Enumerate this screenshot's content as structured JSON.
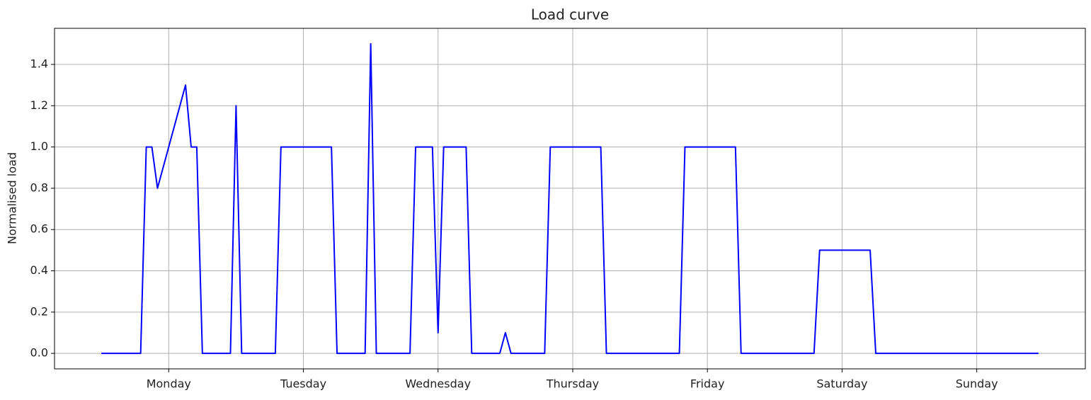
{
  "chart_data": {
    "type": "line",
    "title": "Load curve",
    "ylabel": "Normalised load",
    "x": [
      0,
      1,
      2,
      3,
      4,
      5,
      6,
      7,
      8,
      9,
      10,
      11,
      12,
      13,
      14,
      15,
      16,
      17,
      18,
      19,
      20,
      21,
      22,
      23,
      24,
      25,
      26,
      27,
      28,
      29,
      30,
      31,
      32,
      33,
      34,
      35,
      36,
      37,
      38,
      39,
      40,
      41,
      42,
      43,
      44,
      45,
      46,
      47,
      48,
      49,
      50,
      51,
      52,
      53,
      54,
      55,
      56,
      57,
      58,
      59,
      60,
      61,
      62,
      63,
      64,
      65,
      66,
      67,
      68,
      69,
      70,
      71,
      72,
      73,
      74,
      75,
      76,
      77,
      78,
      79,
      80,
      81,
      82,
      83,
      84,
      85,
      86,
      87,
      88,
      89,
      90,
      91,
      92,
      93,
      94,
      95,
      96,
      97,
      98,
      99,
      100,
      101,
      102,
      103,
      104,
      105,
      106,
      107,
      108,
      109,
      110,
      111,
      112,
      113,
      114,
      115,
      116,
      117,
      118,
      119,
      120,
      121,
      122,
      123,
      124,
      125,
      126,
      127,
      128,
      129,
      130,
      131,
      132,
      133,
      134,
      135,
      136,
      137,
      138,
      139,
      140,
      141,
      142,
      143,
      144,
      145,
      146,
      147,
      148,
      149,
      150,
      151,
      152,
      153,
      154,
      155,
      156,
      157,
      158,
      159,
      160,
      161,
      162,
      163,
      164,
      165,
      166,
      167
    ],
    "values": [
      0,
      0,
      0,
      0,
      0,
      0,
      0,
      0,
      1,
      1,
      0.8,
      0.9,
      1,
      1.1,
      1.2,
      1.3,
      1,
      1,
      0,
      0,
      0,
      0,
      0,
      0,
      1.2,
      0,
      0,
      0,
      0,
      0,
      0,
      0,
      1,
      1,
      1,
      1,
      1,
      1,
      1,
      1,
      1,
      1,
      0,
      0,
      0,
      0,
      0,
      0,
      1.5,
      0,
      0,
      0,
      0,
      0,
      0,
      0,
      1,
      1,
      1,
      1,
      0.1,
      1,
      1,
      1,
      1,
      1,
      0,
      0,
      0,
      0,
      0,
      0,
      0.1,
      0,
      0,
      0,
      0,
      0,
      0,
      0,
      1,
      1,
      1,
      1,
      1,
      1,
      1,
      1,
      1,
      1,
      0,
      0,
      0,
      0,
      0,
      0,
      0,
      0,
      0,
      0,
      0,
      0,
      0,
      0,
      1,
      1,
      1,
      1,
      1,
      1,
      1,
      1,
      1,
      1,
      0,
      0,
      0,
      0,
      0,
      0,
      0,
      0,
      0,
      0,
      0,
      0,
      0,
      0,
      0.5,
      0.5,
      0.5,
      0.5,
      0.5,
      0.5,
      0.5,
      0.5,
      0.5,
      0.5,
      0,
      0,
      0,
      0,
      0,
      0,
      0,
      0,
      0,
      0,
      0,
      0,
      0,
      0,
      0,
      0,
      0,
      0,
      0,
      0,
      0,
      0,
      0,
      0,
      0,
      0,
      0,
      0,
      0,
      0
    ],
    "color": "#0000ff",
    "xlim": [
      -8.35,
      175.35
    ],
    "xticks": [
      {
        "value": 12,
        "label": "Monday"
      },
      {
        "value": 36,
        "label": "Tuesday"
      },
      {
        "value": 60,
        "label": "Wednesday"
      },
      {
        "value": 84,
        "label": "Thursday"
      },
      {
        "value": 108,
        "label": "Friday"
      },
      {
        "value": 132,
        "label": "Saturday"
      },
      {
        "value": 156,
        "label": "Sunday"
      }
    ],
    "ylim": [
      -0.075,
      1.575
    ],
    "yticks": [
      {
        "value": 0,
        "label": "0.0"
      },
      0.2,
      0.4,
      0.6,
      0.8,
      {
        "value": 1,
        "label": "1.0"
      },
      1.2,
      1.4
    ],
    "grid": true
  }
}
